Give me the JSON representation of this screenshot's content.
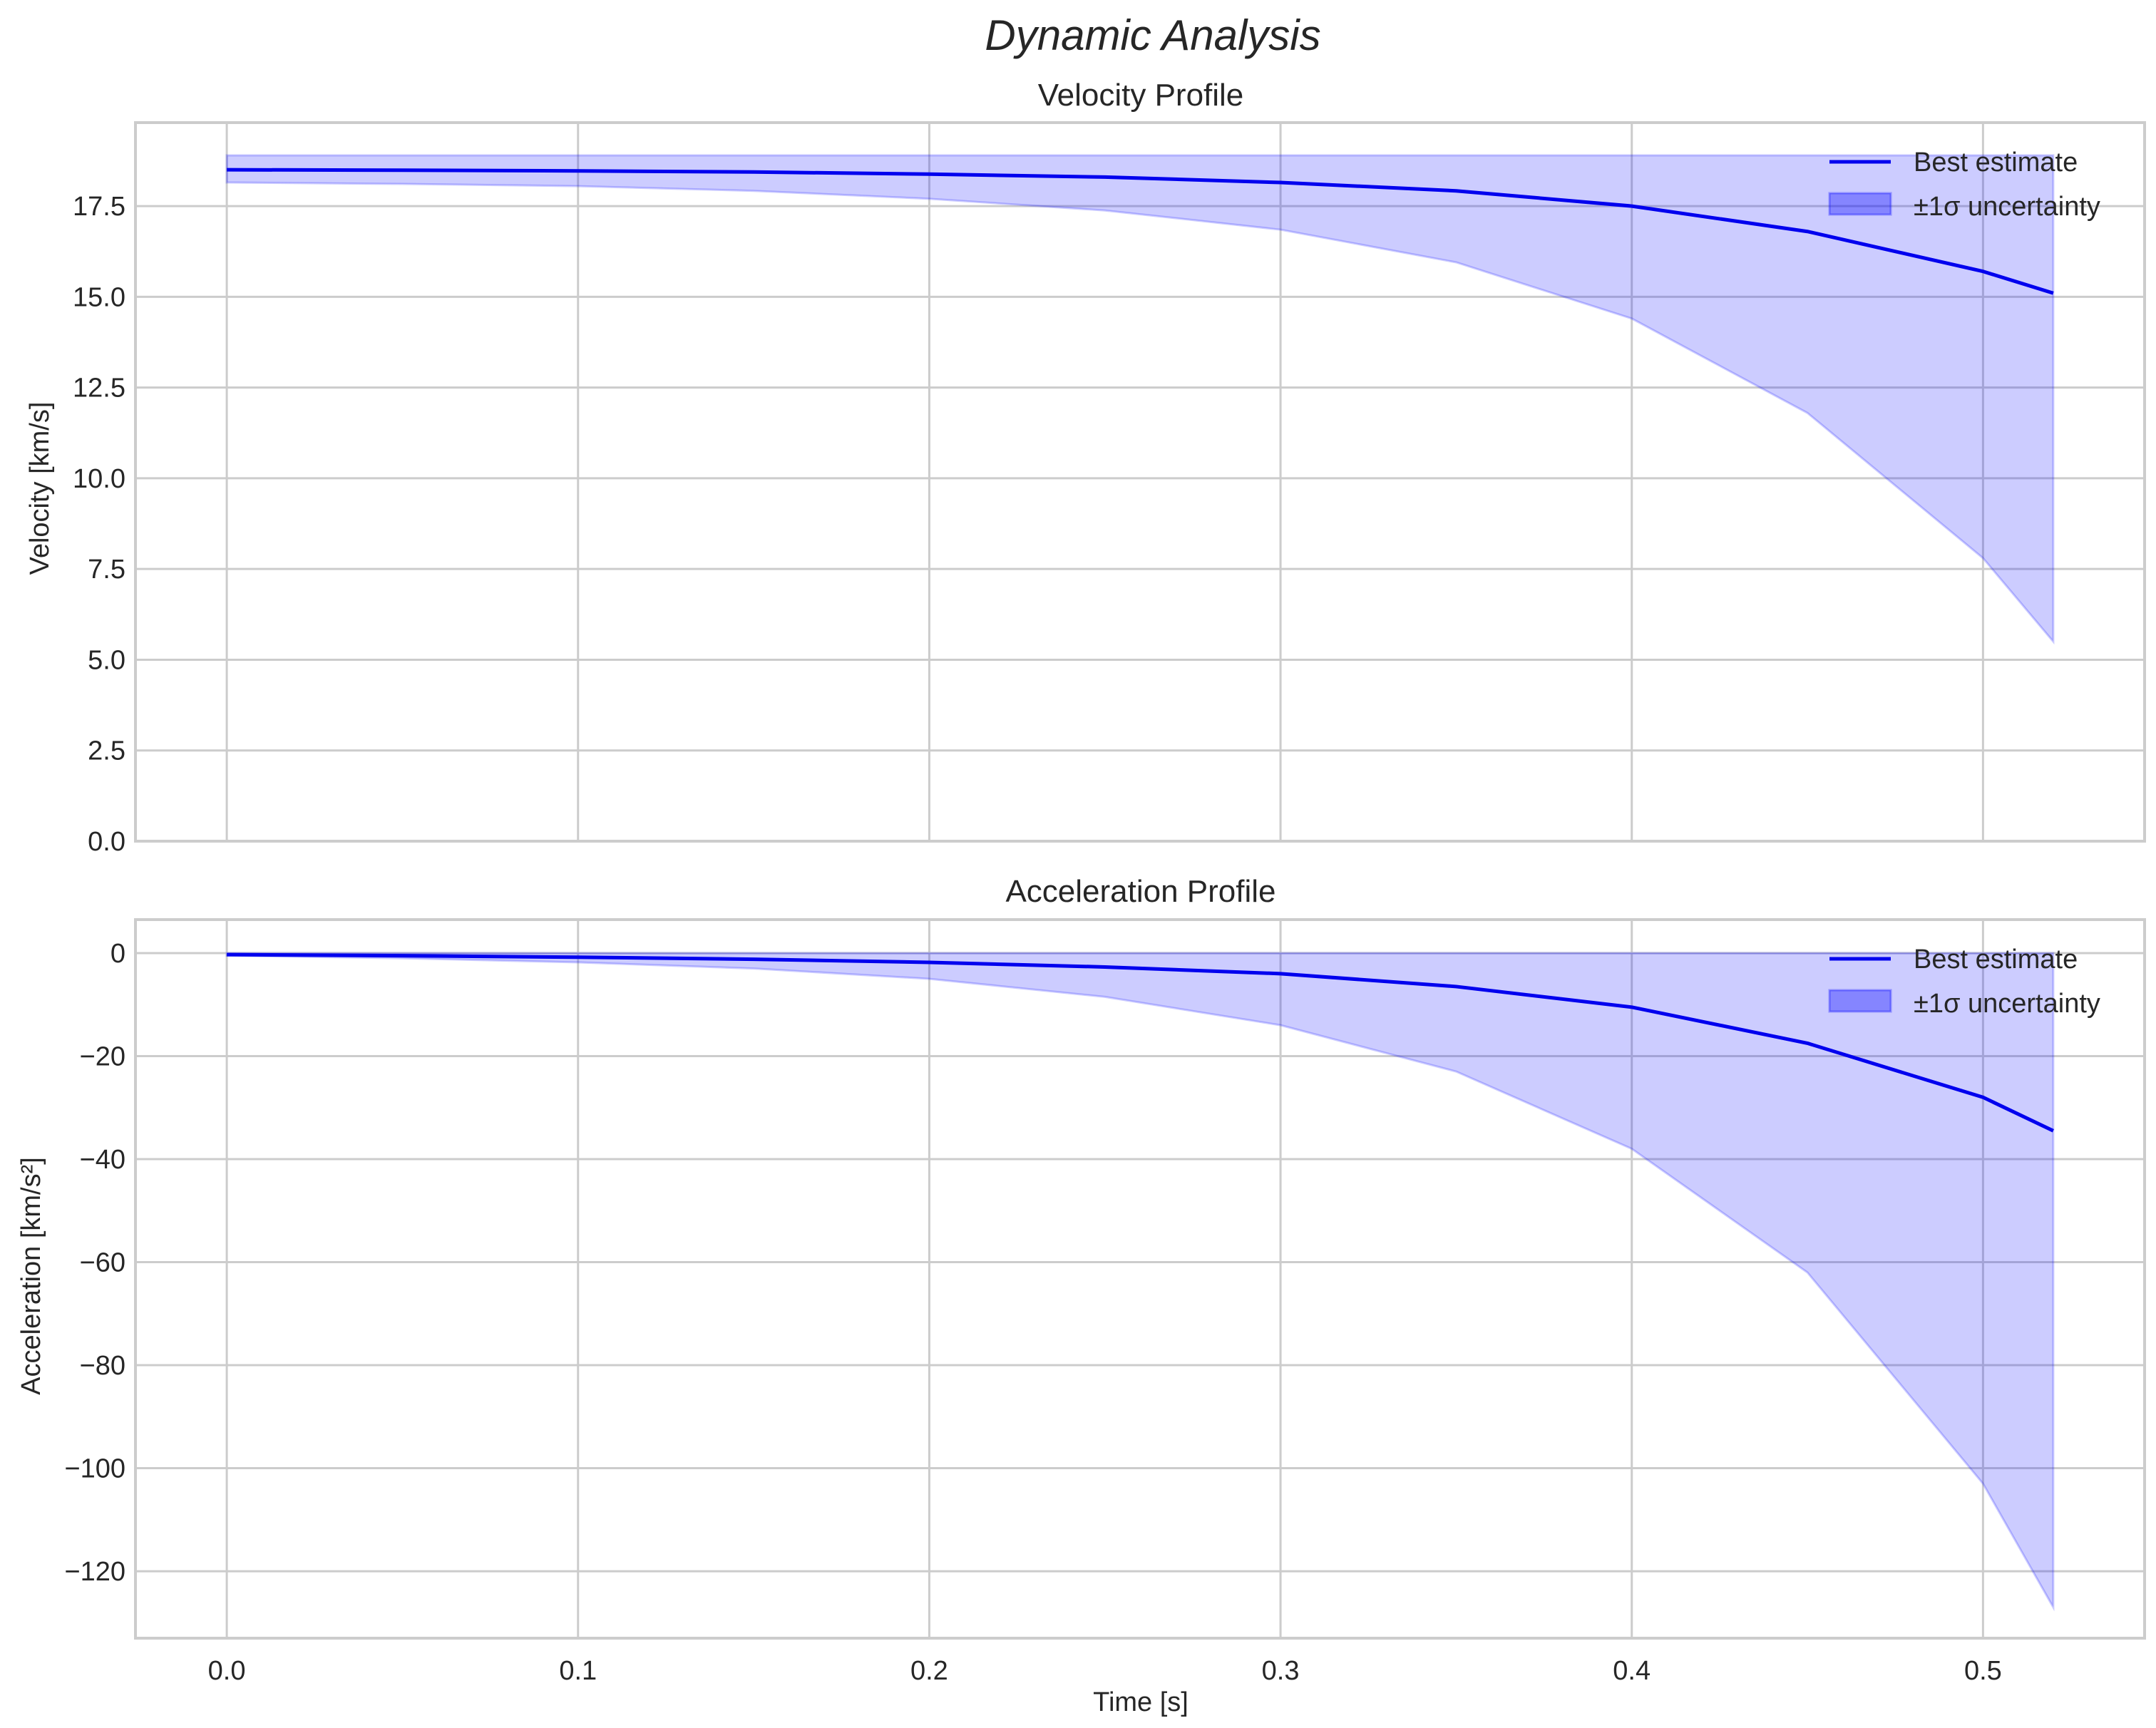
{
  "figure": {
    "title": "Dynamic Analysis",
    "xlabel": "Time [s]",
    "legend": {
      "line_label": "Best estimate",
      "band_label": "±1σ uncertainty"
    },
    "colors": {
      "line": "#0000ee",
      "band": "#0000ff",
      "band_alpha": 0.2,
      "grid": "#cccccc",
      "text": "#262626"
    }
  },
  "chart_data": [
    {
      "type": "line",
      "title": "Velocity Profile",
      "xlabel": "",
      "ylabel": "Velocity [km/s]",
      "xlim": [
        -0.026,
        0.546
      ],
      "ylim": [
        0,
        19.8
      ],
      "xticks": [
        0.0,
        0.1,
        0.2,
        0.3,
        0.4,
        0.5
      ],
      "xtick_labels": [
        "0.0",
        "0.1",
        "0.2",
        "0.3",
        "0.4",
        "0.5"
      ],
      "yticks": [
        0.0,
        2.5,
        5.0,
        7.5,
        10.0,
        12.5,
        15.0,
        17.5
      ],
      "ytick_labels": [
        "0.0",
        "2.5",
        "5.0",
        "7.5",
        "10.0",
        "12.5",
        "15.0",
        "17.5"
      ],
      "grid": true,
      "legend_position": "upper right",
      "x": [
        0.0,
        0.05,
        0.1,
        0.15,
        0.2,
        0.25,
        0.3,
        0.35,
        0.4,
        0.45,
        0.5,
        0.52
      ],
      "series": [
        {
          "name": "Best estimate",
          "values": [
            18.5,
            18.49,
            18.47,
            18.44,
            18.38,
            18.3,
            18.15,
            17.92,
            17.5,
            16.8,
            15.7,
            15.1
          ]
        },
        {
          "name": "±1σ upper",
          "values": [
            18.9,
            18.9,
            18.9,
            18.9,
            18.9,
            18.9,
            18.9,
            18.9,
            18.9,
            18.9,
            18.9,
            18.9
          ]
        },
        {
          "name": "±1σ lower",
          "values": [
            18.15,
            18.11,
            18.05,
            17.92,
            17.7,
            17.38,
            16.85,
            15.95,
            14.4,
            11.8,
            7.8,
            5.5
          ]
        }
      ]
    },
    {
      "type": "line",
      "title": "Acceleration Profile",
      "xlabel": "Time [s]",
      "ylabel": "Acceleration [km/s²]",
      "xlim": [
        -0.026,
        0.546
      ],
      "ylim": [
        -133,
        6.5
      ],
      "xticks": [
        0.0,
        0.1,
        0.2,
        0.3,
        0.4,
        0.5
      ],
      "xtick_labels": [
        "0.0",
        "0.1",
        "0.2",
        "0.3",
        "0.4",
        "0.5"
      ],
      "yticks": [
        0,
        -20,
        -40,
        -60,
        -80,
        -100,
        -120
      ],
      "ytick_labels": [
        "0",
        "−20",
        "−40",
        "−60",
        "−80",
        "−100",
        "−120"
      ],
      "grid": true,
      "legend_position": "upper right",
      "x": [
        0.0,
        0.05,
        0.1,
        0.15,
        0.2,
        0.25,
        0.3,
        0.35,
        0.4,
        0.45,
        0.5,
        0.52
      ],
      "series": [
        {
          "name": "Best estimate",
          "values": [
            -0.3,
            -0.5,
            -0.8,
            -1.2,
            -1.8,
            -2.7,
            -4.0,
            -6.5,
            -10.5,
            -17.5,
            -28.0,
            -34.5
          ]
        },
        {
          "name": "±1σ upper",
          "values": [
            0,
            0,
            0,
            0,
            0,
            0,
            0,
            0,
            0,
            0,
            0,
            0
          ]
        },
        {
          "name": "±1σ lower",
          "values": [
            -0.5,
            -1.0,
            -1.8,
            -3.0,
            -5.0,
            -8.5,
            -14.0,
            -23.0,
            -38.0,
            -62.0,
            -103.0,
            -127.0
          ]
        }
      ]
    }
  ]
}
